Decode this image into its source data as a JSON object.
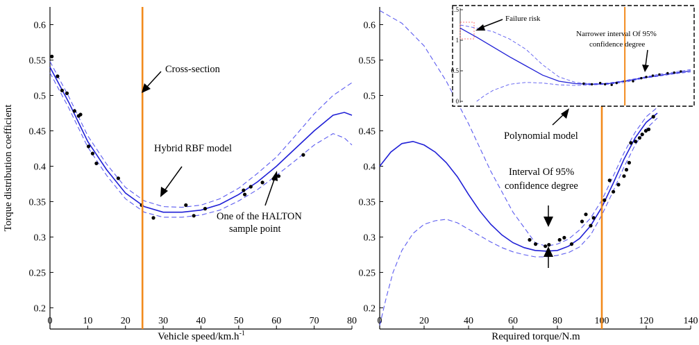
{
  "chart_data": [
    {
      "type": "line",
      "xlabel": "Vehicle speed/km.h",
      "xlabel_sup": "-1",
      "ylabel": "Torque distribution coefficient",
      "xlim": [
        0,
        80
      ],
      "ylim": [
        0.17,
        0.625
      ],
      "xticks": [
        "0",
        "10",
        "20",
        "30",
        "40",
        "50",
        "60",
        "70",
        "80"
      ],
      "yticks": [
        "0.2",
        "0.25",
        "0.3",
        "0.35",
        "0.4",
        "0.45",
        "0.5",
        "0.55",
        "0.6"
      ],
      "cross_section_x": 24.5,
      "series": [
        {
          "name": "Hybrid RBF model",
          "style": "solid",
          "color": "#1f1fd6",
          "x": [
            0,
            5,
            10,
            15,
            20,
            25,
            30,
            35,
            40,
            45,
            50,
            55,
            60,
            65,
            70,
            75,
            78,
            80
          ],
          "y": [
            0.54,
            0.49,
            0.435,
            0.395,
            0.362,
            0.343,
            0.335,
            0.335,
            0.338,
            0.346,
            0.36,
            0.378,
            0.4,
            0.425,
            0.45,
            0.472,
            0.476,
            0.472
          ]
        },
        {
          "style": "dashed",
          "color": "#5b5bf0",
          "x": [
            0,
            5,
            10,
            15,
            20,
            25,
            30,
            35,
            40,
            45,
            50,
            55,
            60,
            65,
            70,
            75,
            80
          ],
          "y": [
            0.548,
            0.498,
            0.443,
            0.403,
            0.37,
            0.351,
            0.343,
            0.342,
            0.345,
            0.354,
            0.369,
            0.39,
            0.413,
            0.443,
            0.474,
            0.5,
            0.518
          ]
        },
        {
          "style": "dashed",
          "color": "#5b5bf0",
          "x": [
            0,
            5,
            10,
            15,
            20,
            25,
            30,
            35,
            40,
            45,
            50,
            55,
            60,
            65,
            70,
            75,
            78,
            80
          ],
          "y": [
            0.532,
            0.482,
            0.427,
            0.387,
            0.354,
            0.335,
            0.328,
            0.328,
            0.331,
            0.338,
            0.351,
            0.367,
            0.387,
            0.408,
            0.43,
            0.446,
            0.44,
            0.43
          ]
        }
      ],
      "sample_points": {
        "x": [
          0.5,
          2,
          3.2,
          4.5,
          6.5,
          7.6,
          8.1,
          10.2,
          11.3,
          12.3,
          18.1,
          24.3,
          27.4,
          36,
          38.1,
          41.1,
          51.3,
          51.6,
          53.2,
          56.3,
          59.3,
          60.6,
          67.1
        ],
        "y": [
          0.555,
          0.527,
          0.507,
          0.503,
          0.478,
          0.471,
          0.473,
          0.428,
          0.418,
          0.404,
          0.383,
          0.345,
          0.327,
          0.345,
          0.33,
          0.34,
          0.366,
          0.36,
          0.371,
          0.377,
          0.382,
          0.386,
          0.416
        ]
      },
      "annotations": [
        {
          "text": "Cross-section"
        },
        {
          "text": "Hybrid RBF model"
        },
        {
          "lines": [
            "One of the HALTON",
            "sample point"
          ]
        }
      ]
    },
    {
      "type": "line",
      "xlabel": "Required torque/N.m",
      "ylabel": "",
      "xlim": [
        0,
        140
      ],
      "ylim": [
        0.17,
        0.625
      ],
      "xticks": [
        "0",
        "20",
        "40",
        "60",
        "80",
        "100",
        "120",
        "140"
      ],
      "yticks": [
        "0.2",
        "0.25",
        "0.3",
        "0.35",
        "0.4",
        "0.45",
        "0.5",
        "0.55",
        "0.6"
      ],
      "cross_section_x": 100,
      "series": [
        {
          "name": "Polynomial model",
          "style": "solid",
          "color": "#1f1fd6",
          "x": [
            0,
            5,
            10,
            15,
            20,
            25,
            30,
            35,
            40,
            45,
            50,
            55,
            60,
            65,
            70,
            75,
            80,
            85,
            90,
            95,
            100,
            105,
            110,
            115,
            120,
            125
          ],
          "y": [
            0.4,
            0.42,
            0.432,
            0.435,
            0.43,
            0.42,
            0.405,
            0.385,
            0.36,
            0.337,
            0.318,
            0.303,
            0.292,
            0.285,
            0.281,
            0.28,
            0.281,
            0.287,
            0.298,
            0.316,
            0.342,
            0.375,
            0.41,
            0.44,
            0.462,
            0.475
          ]
        },
        {
          "style": "dashed",
          "color": "#5b5bf0",
          "x": [
            0,
            10,
            20,
            30,
            40,
            50,
            60,
            70,
            75,
            80,
            85,
            90,
            95,
            100,
            105,
            110,
            115,
            120,
            125
          ],
          "y": [
            0.62,
            0.602,
            0.57,
            0.52,
            0.46,
            0.393,
            0.335,
            0.292,
            0.287,
            0.29,
            0.297,
            0.31,
            0.327,
            0.352,
            0.385,
            0.419,
            0.448,
            0.47,
            0.483
          ]
        },
        {
          "style": "dashed",
          "color": "#5b5bf0",
          "x": [
            0,
            3,
            6,
            10,
            15,
            20,
            25,
            30,
            35,
            40,
            45,
            50,
            55,
            60,
            65,
            70,
            75,
            80,
            85,
            90,
            95,
            100,
            105,
            110,
            115,
            120,
            125
          ],
          "y": [
            0.175,
            0.215,
            0.25,
            0.281,
            0.305,
            0.318,
            0.323,
            0.325,
            0.32,
            0.311,
            0.302,
            0.293,
            0.285,
            0.279,
            0.275,
            0.272,
            0.272,
            0.274,
            0.278,
            0.286,
            0.303,
            0.331,
            0.364,
            0.399,
            0.43,
            0.453,
            0.468
          ]
        }
      ],
      "sample_points": {
        "x": [
          67.5,
          70.2,
          74.6,
          76.2,
          81,
          83.1,
          86.4,
          91.1,
          92.8,
          95,
          96.3,
          101.2,
          103.5,
          105.2,
          107.5,
          110,
          111.1,
          112.3,
          113.1,
          115.2,
          117,
          118.2,
          119.8,
          121.1,
          123.2
        ],
        "y": [
          0.296,
          0.29,
          0.287,
          0.289,
          0.296,
          0.299,
          0.29,
          0.322,
          0.332,
          0.316,
          0.327,
          0.352,
          0.38,
          0.364,
          0.374,
          0.386,
          0.395,
          0.405,
          0.433,
          0.435,
          0.44,
          0.445,
          0.45,
          0.452,
          0.47
        ]
      },
      "annotations": [
        {
          "text": "Polynomial model"
        },
        {
          "lines": [
            "Interval Of 95%",
            "confidence degree"
          ]
        }
      ],
      "inset": {
        "xlim": [
          0,
          140
        ],
        "ylim": [
          0,
          1.5
        ],
        "yticks": [
          "0",
          "0.5",
          "1",
          "1.5"
        ],
        "series": [
          {
            "style": "solid",
            "color": "#1f1fd6",
            "x": [
              0,
              10,
              20,
              30,
              40,
              50,
              60,
              70,
              80,
              90,
              100,
              110,
              120,
              130,
              140
            ],
            "y": [
              1.2,
              1.05,
              0.89,
              0.73,
              0.58,
              0.43,
              0.33,
              0.29,
              0.28,
              0.29,
              0.33,
              0.38,
              0.42,
              0.46,
              0.5
            ]
          },
          {
            "style": "dashed",
            "color": "#5b5bf0",
            "x": [
              0,
              10,
              20,
              30,
              40,
              50,
              60,
              70,
              80,
              90,
              100,
              110,
              120,
              130,
              140
            ],
            "y": [
              1.25,
              1.2,
              1.14,
              1.02,
              0.85,
              0.6,
              0.4,
              0.31,
              0.29,
              0.3,
              0.34,
              0.39,
              0.44,
              0.48,
              0.52
            ]
          },
          {
            "style": "dashed",
            "color": "#5b5bf0",
            "x": [
              10,
              15,
              20,
              30,
              40,
              50,
              60,
              70,
              80,
              90,
              100,
              110,
              120,
              130,
              140
            ],
            "y": [
              0.0,
              0.1,
              0.18,
              0.28,
              0.31,
              0.3,
              0.27,
              0.26,
              0.27,
              0.28,
              0.31,
              0.37,
              0.41,
              0.45,
              0.48
            ]
          }
        ],
        "sample_points": {
          "x": [
            75,
            80,
            85,
            88,
            92,
            95,
            100,
            105,
            110,
            113,
            117,
            121,
            126,
            130,
            134
          ],
          "y": [
            0.29,
            0.28,
            0.3,
            0.28,
            0.27,
            0.3,
            0.33,
            0.33,
            0.38,
            0.4,
            0.42,
            0.44,
            0.46,
            0.47,
            0.49
          ]
        },
        "cross_section_x": 100,
        "annotations": [
          {
            "text": "Failure risk"
          },
          {
            "lines": [
              "Narrower interval Of 95%",
              "confidence degree"
            ]
          }
        ]
      }
    }
  ]
}
